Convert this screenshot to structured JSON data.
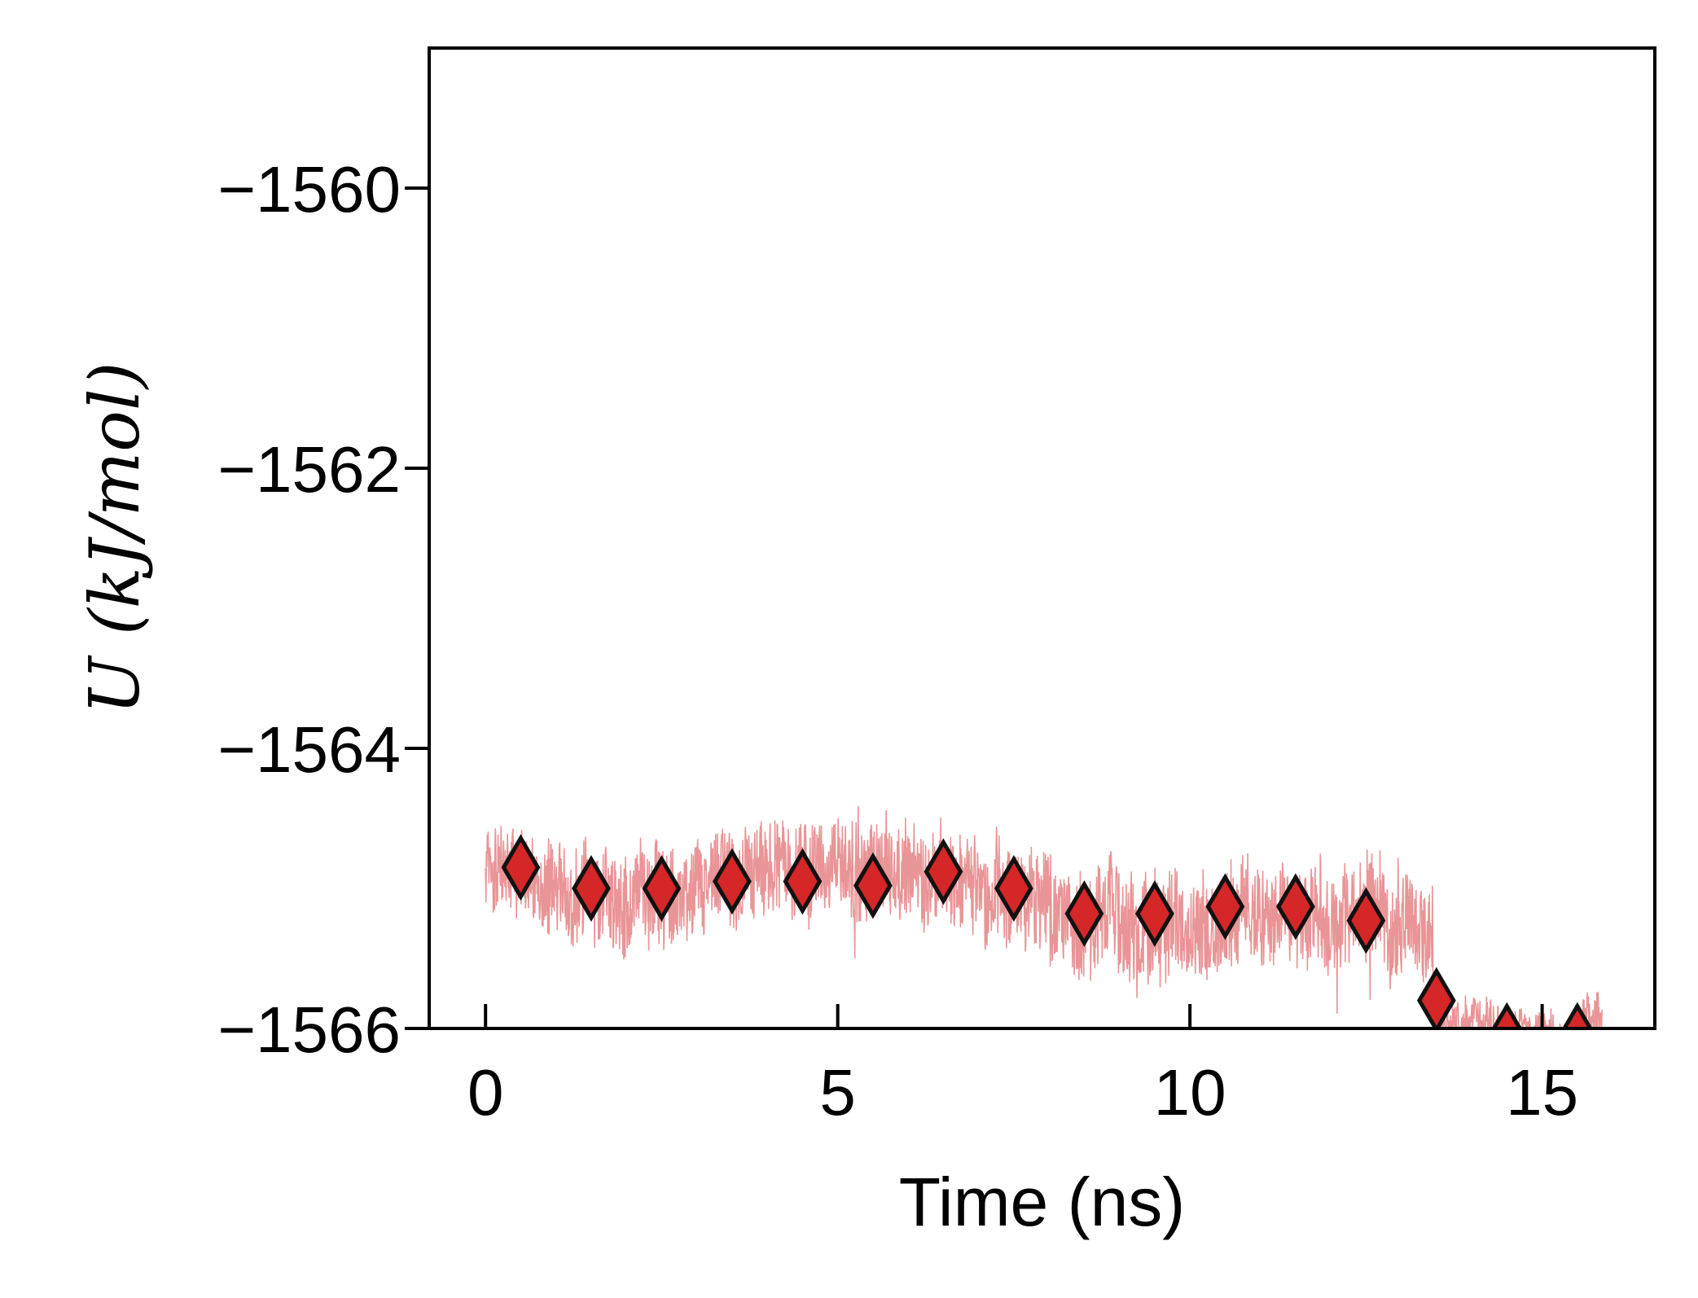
{
  "chart_data": {
    "type": "line",
    "xlabel": "Time (ns)",
    "ylabel": "U (kJ/mol)",
    "xlim": [
      -0.8,
      16.6
    ],
    "ylim": [
      -1566,
      -1559
    ],
    "xticks": [
      0,
      5,
      10,
      15
    ],
    "yticks": [
      -1566,
      -1564,
      -1562,
      -1560
    ],
    "xtick_labels": [
      "0",
      "5",
      "10",
      "15"
    ],
    "ytick_labels": [
      "−1566",
      "−1564",
      "−1562",
      "−1560"
    ],
    "grid": false,
    "legend": "none",
    "series": [
      {
        "kind": "raw-fluctuating-line",
        "color": "#e99496",
        "x_range": [
          0,
          15.85
        ],
        "segments": [
          {
            "x": [
              0,
              1.0
            ],
            "mean": -1564.9,
            "spread": 0.35
          },
          {
            "x": [
              1.0,
              3.0
            ],
            "mean": -1565.05,
            "spread": 0.4
          },
          {
            "x": [
              3.0,
              7.0
            ],
            "mean": -1564.95,
            "spread": 0.4
          },
          {
            "x": [
              7.0,
              8.0
            ],
            "mean": -1565.05,
            "spread": 0.4
          },
          {
            "x": [
              8.0,
              11.0
            ],
            "mean": -1565.2,
            "spread": 0.45
          },
          {
            "x": [
              11.0,
              13.45
            ],
            "mean": -1565.25,
            "spread": 0.4
          },
          {
            "x": [
              13.45,
              15.85
            ],
            "mean": -1565.95,
            "spread": 0.18
          }
        ]
      },
      {
        "kind": "block-average-markers",
        "marker": "diamond",
        "color": "#d62728",
        "edge_color": "#111111",
        "x": [
          0.5,
          1.5,
          2.5,
          3.5,
          4.5,
          5.5,
          6.5,
          7.5,
          8.5,
          9.5,
          10.5,
          11.5,
          12.5,
          13.5,
          14.5,
          15.5
        ],
        "y": [
          -1564.85,
          -1565.0,
          -1565.0,
          -1564.95,
          -1564.95,
          -1564.98,
          -1564.88,
          -1565.0,
          -1565.18,
          -1565.18,
          -1565.13,
          -1565.13,
          -1565.23,
          -1565.8,
          -1566.05,
          -1566.05
        ]
      }
    ]
  }
}
